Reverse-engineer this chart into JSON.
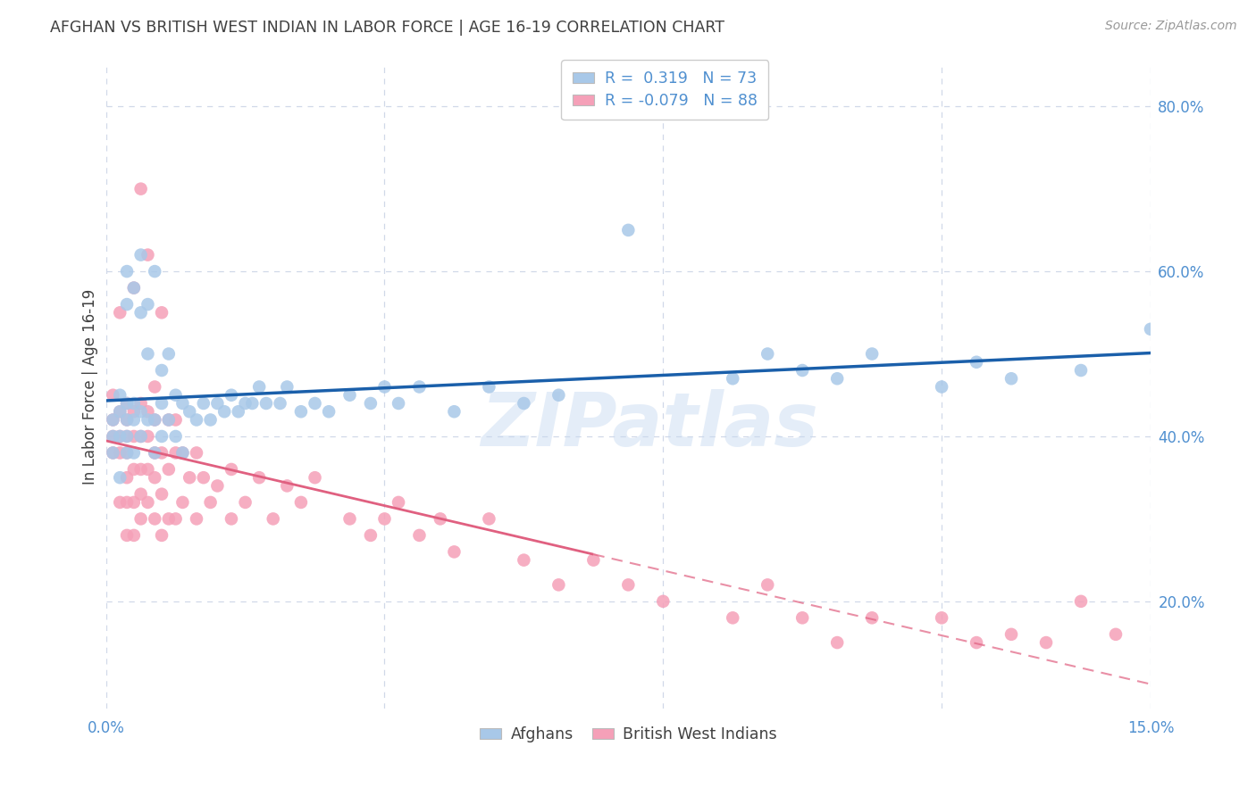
{
  "title": "AFGHAN VS BRITISH WEST INDIAN IN LABOR FORCE | AGE 16-19 CORRELATION CHART",
  "source": "Source: ZipAtlas.com",
  "ylabel": "In Labor Force | Age 16-19",
  "xmin": 0.0,
  "xmax": 0.15,
  "ymin": 0.07,
  "ymax": 0.85,
  "yticks": [
    0.2,
    0.4,
    0.6,
    0.8
  ],
  "ytick_labels": [
    "20.0%",
    "40.0%",
    "60.0%",
    "80.0%"
  ],
  "blue_color": "#a8c8e8",
  "pink_color": "#f5a0b8",
  "blue_line_color": "#1a5faa",
  "pink_line_color": "#e06080",
  "pink_line_solid_end": 0.07,
  "watermark_text": "ZIPatlas",
  "background_color": "#ffffff",
  "grid_color": "#d0d8e8",
  "title_color": "#404040",
  "axis_color": "#5090d0",
  "source_color": "#999999",
  "afghans_x": [
    0.001,
    0.001,
    0.001,
    0.002,
    0.002,
    0.002,
    0.002,
    0.003,
    0.003,
    0.003,
    0.003,
    0.003,
    0.003,
    0.004,
    0.004,
    0.004,
    0.004,
    0.005,
    0.005,
    0.005,
    0.005,
    0.006,
    0.006,
    0.006,
    0.007,
    0.007,
    0.007,
    0.008,
    0.008,
    0.008,
    0.009,
    0.009,
    0.01,
    0.01,
    0.011,
    0.011,
    0.012,
    0.013,
    0.014,
    0.015,
    0.016,
    0.017,
    0.018,
    0.019,
    0.02,
    0.021,
    0.022,
    0.023,
    0.025,
    0.026,
    0.028,
    0.03,
    0.032,
    0.035,
    0.038,
    0.04,
    0.042,
    0.045,
    0.05,
    0.055,
    0.06,
    0.065,
    0.075,
    0.09,
    0.095,
    0.1,
    0.105,
    0.11,
    0.12,
    0.125,
    0.13,
    0.14,
    0.15
  ],
  "afghans_y": [
    0.38,
    0.4,
    0.42,
    0.35,
    0.4,
    0.43,
    0.45,
    0.38,
    0.4,
    0.42,
    0.44,
    0.56,
    0.6,
    0.38,
    0.42,
    0.44,
    0.58,
    0.4,
    0.43,
    0.55,
    0.62,
    0.42,
    0.5,
    0.56,
    0.38,
    0.42,
    0.6,
    0.4,
    0.44,
    0.48,
    0.42,
    0.5,
    0.4,
    0.45,
    0.38,
    0.44,
    0.43,
    0.42,
    0.44,
    0.42,
    0.44,
    0.43,
    0.45,
    0.43,
    0.44,
    0.44,
    0.46,
    0.44,
    0.44,
    0.46,
    0.43,
    0.44,
    0.43,
    0.45,
    0.44,
    0.46,
    0.44,
    0.46,
    0.43,
    0.46,
    0.44,
    0.45,
    0.65,
    0.47,
    0.5,
    0.48,
    0.47,
    0.5,
    0.46,
    0.49,
    0.47,
    0.48,
    0.53
  ],
  "bwi_x": [
    0.001,
    0.001,
    0.001,
    0.001,
    0.002,
    0.002,
    0.002,
    0.002,
    0.002,
    0.003,
    0.003,
    0.003,
    0.003,
    0.003,
    0.003,
    0.003,
    0.004,
    0.004,
    0.004,
    0.004,
    0.004,
    0.004,
    0.005,
    0.005,
    0.005,
    0.005,
    0.005,
    0.005,
    0.006,
    0.006,
    0.006,
    0.006,
    0.006,
    0.007,
    0.007,
    0.007,
    0.007,
    0.007,
    0.008,
    0.008,
    0.008,
    0.008,
    0.009,
    0.009,
    0.009,
    0.01,
    0.01,
    0.01,
    0.011,
    0.011,
    0.012,
    0.013,
    0.013,
    0.014,
    0.015,
    0.016,
    0.018,
    0.018,
    0.02,
    0.022,
    0.024,
    0.026,
    0.028,
    0.03,
    0.035,
    0.038,
    0.04,
    0.042,
    0.045,
    0.048,
    0.05,
    0.055,
    0.06,
    0.065,
    0.07,
    0.075,
    0.08,
    0.09,
    0.095,
    0.1,
    0.105,
    0.11,
    0.12,
    0.125,
    0.13,
    0.135,
    0.14,
    0.145
  ],
  "bwi_y": [
    0.38,
    0.4,
    0.42,
    0.45,
    0.32,
    0.38,
    0.4,
    0.43,
    0.55,
    0.28,
    0.32,
    0.35,
    0.38,
    0.4,
    0.42,
    0.44,
    0.28,
    0.32,
    0.36,
    0.4,
    0.43,
    0.58,
    0.3,
    0.33,
    0.36,
    0.4,
    0.44,
    0.7,
    0.32,
    0.36,
    0.4,
    0.43,
    0.62,
    0.3,
    0.35,
    0.38,
    0.42,
    0.46,
    0.28,
    0.33,
    0.38,
    0.55,
    0.3,
    0.36,
    0.42,
    0.3,
    0.38,
    0.42,
    0.32,
    0.38,
    0.35,
    0.3,
    0.38,
    0.35,
    0.32,
    0.34,
    0.3,
    0.36,
    0.32,
    0.35,
    0.3,
    0.34,
    0.32,
    0.35,
    0.3,
    0.28,
    0.3,
    0.32,
    0.28,
    0.3,
    0.26,
    0.3,
    0.25,
    0.22,
    0.25,
    0.22,
    0.2,
    0.18,
    0.22,
    0.18,
    0.15,
    0.18,
    0.18,
    0.15,
    0.16,
    0.15,
    0.2,
    0.16
  ]
}
